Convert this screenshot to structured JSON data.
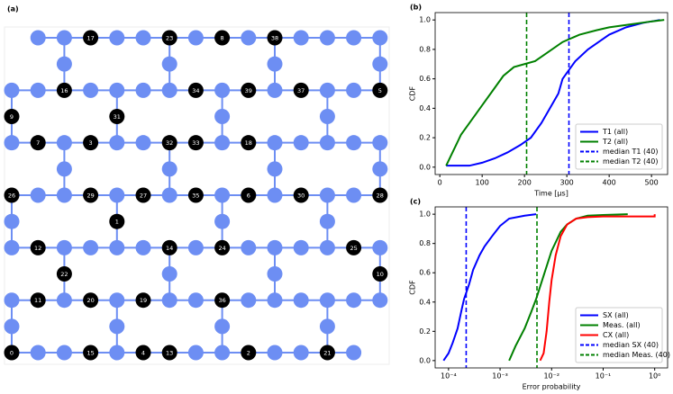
{
  "diagram": {
    "panel_label": "(a)",
    "qubit_labels": [
      "17",
      "23",
      "8",
      "38",
      "16",
      "34",
      "39",
      "37",
      "5",
      "9",
      "31",
      "7",
      "3",
      "32",
      "33",
      "18",
      "26",
      "29",
      "27",
      "35",
      "6",
      "30",
      "28",
      "1",
      "12",
      "14",
      "24",
      "25",
      "22",
      "10",
      "11",
      "20",
      "19",
      "36",
      "0",
      "15",
      "4",
      "13",
      "2",
      "21"
    ]
  },
  "chart_data": [
    {
      "type": "line",
      "title": "(b)",
      "xlabel": "Time [μs]",
      "ylabel": "CDF",
      "xlim": [
        -11,
        538
      ],
      "ylim": [
        -0.05,
        1.05
      ],
      "xticks": [
        0,
        100,
        200,
        300,
        400,
        500
      ],
      "yticks": [
        {
          "value": 0,
          "label": "0.0"
        },
        {
          "value": 0.2,
          "label": "0.2"
        },
        {
          "value": 0.4,
          "label": "0.4"
        },
        {
          "value": 0.6,
          "label": "0.6"
        },
        {
          "value": 0.8,
          "label": "0.8"
        },
        {
          "value": 1,
          "label": "1.0"
        }
      ],
      "legend": "lower right",
      "series": [
        {
          "name": "T1 (all)",
          "color": "#0000ff",
          "x": [
            15,
            70,
            100,
            130,
            160,
            190,
            215,
            240,
            260,
            280,
            290,
            305,
            320,
            350,
            380,
            400,
            440,
            480,
            520
          ],
          "values": [
            0.01,
            0.01,
            0.03,
            0.06,
            0.1,
            0.15,
            0.2,
            0.3,
            0.4,
            0.5,
            0.6,
            0.66,
            0.72,
            0.8,
            0.86,
            0.9,
            0.95,
            0.98,
            1.0
          ]
        },
        {
          "name": "T2 (all)",
          "color": "#008000",
          "x": [
            15,
            30,
            50,
            75,
            100,
            125,
            150,
            175,
            200,
            225,
            250,
            290,
            330,
            370,
            400,
            450,
            500,
            530
          ],
          "values": [
            0.01,
            0.1,
            0.22,
            0.32,
            0.42,
            0.52,
            0.62,
            0.68,
            0.7,
            0.72,
            0.77,
            0.85,
            0.9,
            0.93,
            0.95,
            0.97,
            0.99,
            1.0
          ]
        }
      ],
      "vlines": [
        {
          "name": "median T1 (40)",
          "color": "#0000ff",
          "x": 305
        },
        {
          "name": "median T2 (40)",
          "color": "#008000",
          "x": 205
        }
      ]
    },
    {
      "type": "line",
      "title": "(c)",
      "xlabel": "Error probability",
      "ylabel": "CDF",
      "xscale": "log",
      "xlim": [
        5.5e-05,
        1.78
      ],
      "ylim": [
        -0.05,
        1.05
      ],
      "xticks": [
        {
          "value": 0.0001,
          "label": "10⁻⁴"
        },
        {
          "value": 0.001,
          "label": "10⁻³"
        },
        {
          "value": 0.01,
          "label": "10⁻²"
        },
        {
          "value": 0.1,
          "label": "10⁻¹"
        },
        {
          "value": 1,
          "label": "10⁰"
        }
      ],
      "yticks": [
        {
          "value": 0,
          "label": "0.0"
        },
        {
          "value": 0.2,
          "label": "0.2"
        },
        {
          "value": 0.4,
          "label": "0.4"
        },
        {
          "value": 0.6,
          "label": "0.6"
        },
        {
          "value": 0.8,
          "label": "0.8"
        },
        {
          "value": 1,
          "label": "1.0"
        }
      ],
      "legend": "lower right",
      "series": [
        {
          "name": "SX (all)",
          "color": "#0000ff",
          "x": [
            8e-05,
            0.0001,
            0.00012,
            0.00015,
            0.00018,
            0.0002,
            0.00025,
            0.0003,
            0.0004,
            0.0005,
            0.0007,
            0.001,
            0.0015,
            0.003,
            0.005
          ],
          "values": [
            0,
            0.05,
            0.12,
            0.22,
            0.35,
            0.42,
            0.52,
            0.62,
            0.72,
            0.78,
            0.85,
            0.92,
            0.97,
            0.99,
            1.0
          ]
        },
        {
          "name": "Meas. (all)",
          "color": "#008000",
          "x": [
            0.0015,
            0.002,
            0.003,
            0.004,
            0.005,
            0.007,
            0.01,
            0.015,
            0.02,
            0.03,
            0.05,
            0.1,
            0.3
          ],
          "values": [
            0,
            0.1,
            0.22,
            0.33,
            0.42,
            0.58,
            0.75,
            0.88,
            0.93,
            0.97,
            0.99,
            0.995,
            1.0
          ]
        },
        {
          "name": "CX (all)",
          "color": "#ff0000",
          "x": [
            0.006,
            0.007,
            0.008,
            0.009,
            0.01,
            0.012,
            0.015,
            0.02,
            0.03,
            0.05,
            0.1,
            1,
            1
          ],
          "values": [
            0,
            0.05,
            0.2,
            0.4,
            0.55,
            0.72,
            0.85,
            0.93,
            0.97,
            0.98,
            0.985,
            0.985,
            1.0
          ]
        }
      ],
      "vlines": [
        {
          "name": "median SX (40)",
          "color": "#0000ff",
          "x": 0.00022
        },
        {
          "name": "median Meas. (40)",
          "color": "#008000",
          "x": 0.0052
        }
      ]
    }
  ]
}
